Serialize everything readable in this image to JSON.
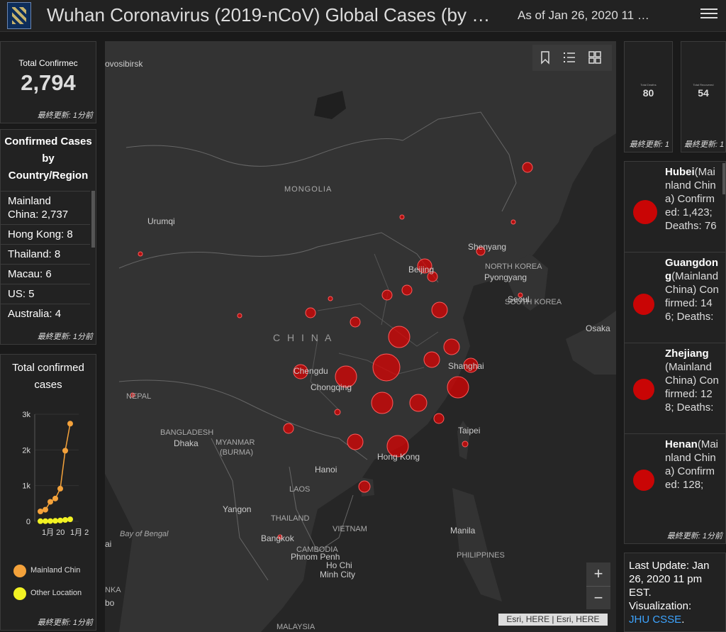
{
  "header": {
    "title": "Wuhan Coronavirus (2019-nCoV) Global Cases (by …",
    "as_of": "As of Jan 26, 2020 11 …"
  },
  "total_confirmed": {
    "label": "Total Confirmec",
    "value": "2,794",
    "updated": "最終更新: 1分前"
  },
  "country_list": {
    "title": "Confirmed Cases by Country/Region",
    "items": [
      {
        "label": "Mainland China:  2,737"
      },
      {
        "label": "Hong Kong:  8"
      },
      {
        "label": "Thailand:  8"
      },
      {
        "label": "Macau:  6"
      },
      {
        "label": "US:  5"
      },
      {
        "label": "Australia:  4"
      }
    ],
    "updated": "最終更新: 1分前"
  },
  "total_chart_panel": {
    "updated": "最終更新: 1分前"
  },
  "chart_data": {
    "type": "line",
    "title": "Total confirmed cases",
    "x_tick_labels": [
      "1月 20",
      "1月 2"
    ],
    "ylim": [
      0,
      3000
    ],
    "y_ticks": [
      "0",
      "1k",
      "2k",
      "3k"
    ],
    "legend_position": "bottom",
    "series": [
      {
        "name": "Mainland Chin",
        "color": "#f4a23b",
        "values": [
          278,
          326,
          547,
          639,
          916,
          1979,
          2737
        ]
      },
      {
        "name": "Other Location",
        "color": "#f2f223",
        "values": [
          4,
          6,
          8,
          14,
          25,
          40,
          57
        ]
      }
    ]
  },
  "deaths_panel": {
    "label": "Total Deaths",
    "value": "80",
    "updated": "最終更新: 1"
  },
  "recovered_panel": {
    "label": "Total Recovered",
    "value": "54",
    "updated": "最終更新: 1"
  },
  "region_list": {
    "items": [
      {
        "name": "Hubei",
        "text": "(Mainland China) Confirmed: 1,423; Deaths: 76"
      },
      {
        "name": "Guangdong",
        "text": "(Mainland China) Confirmed: 146; Deaths:"
      },
      {
        "name": "Zhejiang",
        "text": "(Mainland China) Confirmed: 128; Deaths:"
      },
      {
        "name": "Henan",
        "text": "(Mainland China) Confirmed: 128;"
      }
    ],
    "updated": "最終更新: 1分前"
  },
  "info_panel": {
    "text1": "Last Update: Jan 26, 2020 11 pm EST.",
    "text2": "Visualization:",
    "link": "JHU CSSE",
    "dot": "."
  },
  "map": {
    "labels": {
      "novosibirsk": "ovosibirsk",
      "mongolia": "MONGOLIA",
      "urumqi": "Urumqi",
      "china": "C H I N A",
      "shenyang": "Shenyang",
      "beijing": "Beijing",
      "north_korea": "NORTH KOREA",
      "pyongyang": "Pyongyang",
      "south_korea": "SOUTH KOREA",
      "seoul": "Seoul",
      "osaka": "Osaka",
      "chengdu": "Chengdu",
      "chongqing": "Chongqing",
      "shanghai": "Shanghai",
      "nepal": "NEPAL",
      "bangladesh": "BANGLADESH",
      "dhaka": "Dhaka",
      "myanmar": "MYANMAR",
      "burma": "(BURMA)",
      "taipei": "Taipei",
      "hong_kong": "Hong Kong",
      "hanoi": "Hanoi",
      "laos": "LAOS",
      "yangon": "Yangon",
      "thailand": "THAILAND",
      "bay_of_bengal": "Bay of Bengal",
      "vietnam": "VIETNAM",
      "manila": "Manila",
      "bangkok": "Bangkok",
      "cambodia": "CAMBODIA",
      "phnom_penh": "Phnom Penh",
      "ho_chi_minh": "Ho Chi",
      "minh_city": "Minh City",
      "philippines": "PHILIPPINES",
      "nka": "NKA",
      "bo": "bo",
      "ai": "ai",
      "malaysia": "MALAYSIA"
    },
    "zoom_in": "+",
    "zoom_out": "−",
    "attribution": "Esri, HERE | Esri, HERE"
  },
  "colors": {
    "bubble": "#e60000",
    "mainland_series": "#f4a23b",
    "other_series": "#f2f223",
    "link": "#3da4ff"
  }
}
